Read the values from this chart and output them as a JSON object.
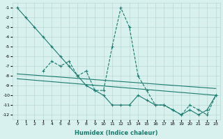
{
  "xlabel": "Humidex (Indice chaleur)",
  "line_color": "#1a7a6e",
  "bg_color": "#d8f0ee",
  "grid_color": "#b8d8d4",
  "xlim": [
    -0.5,
    23.5
  ],
  "ylim": [
    -12.5,
    -0.5
  ],
  "xticks": [
    0,
    1,
    2,
    3,
    4,
    5,
    6,
    7,
    8,
    9,
    10,
    11,
    12,
    13,
    14,
    15,
    16,
    17,
    18,
    19,
    20,
    21,
    22,
    23
  ],
  "yticks": [
    -1,
    -2,
    -3,
    -4,
    -5,
    -6,
    -7,
    -8,
    -9,
    -10,
    -11,
    -12
  ],
  "line1_x": [
    0,
    1,
    2,
    3,
    4,
    5,
    6,
    7,
    8,
    9,
    10,
    11,
    12,
    13,
    14,
    15,
    16,
    17,
    18,
    19,
    20,
    21,
    22,
    23
  ],
  "line1_y": [
    -1,
    -2,
    -3,
    -4,
    -5,
    -6,
    -7,
    -8,
    -9,
    -9.5,
    -10,
    -11,
    -11,
    -11,
    -10,
    -10.5,
    -11,
    -11,
    -11.5,
    -12,
    -11.5,
    -12,
    -11.5,
    -10
  ],
  "line2_x": [
    3,
    4,
    5,
    6,
    7,
    8,
    9,
    10,
    11,
    12,
    13,
    14,
    15,
    16,
    17,
    18,
    19,
    20,
    21,
    22,
    23
  ],
  "line2_y": [
    -7.5,
    -6.5,
    -7,
    -6.5,
    -8,
    -7.5,
    -9.5,
    -9.5,
    -5,
    -1,
    -3,
    -8,
    -9.5,
    -11,
    -11,
    -11.5,
    -12,
    -11,
    -11.5,
    -12,
    -10
  ],
  "trend1_x": [
    0,
    23
  ],
  "trend1_y": [
    -7.8,
    -9.3
  ],
  "trend2_x": [
    0,
    23
  ],
  "trend2_y": [
    -8.3,
    -10.0
  ]
}
